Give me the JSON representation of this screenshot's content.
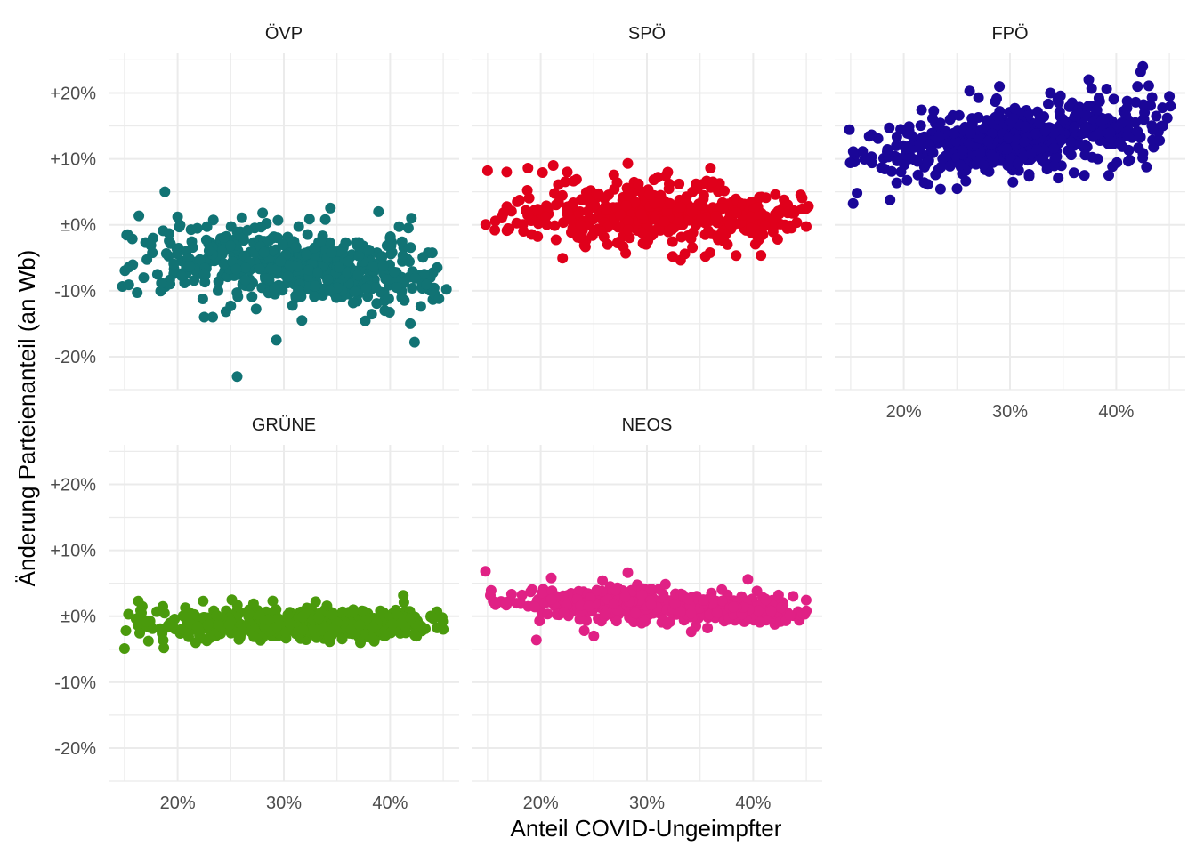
{
  "chart_data": {
    "type": "scatter",
    "xlabel": "Anteil COVID-Ungeimpfter",
    "ylabel": "Änderung Parteienanteil (an Wb)",
    "x_ticks": [
      {
        "value": 20,
        "label": "20%"
      },
      {
        "value": 30,
        "label": "30%"
      },
      {
        "value": 40,
        "label": "40%"
      }
    ],
    "y_ticks": [
      {
        "value": 20,
        "label": "+20%"
      },
      {
        "value": 10,
        "label": "+10%"
      },
      {
        "value": 0,
        "label": "±0%"
      },
      {
        "value": -10,
        "label": "-10%"
      },
      {
        "value": -20,
        "label": "-20%"
      }
    ],
    "xlim": [
      13.5,
      46.5
    ],
    "ylim": [
      -25,
      26
    ],
    "grid": true,
    "legend": "none",
    "facets": [
      {
        "name": "ÖVP",
        "color": "#117374",
        "points": [
          [
            18.8,
            5.0
          ],
          [
            25.6,
            -23.0
          ],
          [
            29.3,
            -17.5
          ],
          [
            42.3,
            -17.8
          ],
          [
            41.9,
            -15.0
          ],
          [
            38.9,
            2.0
          ],
          [
            42.0,
            1.0
          ],
          [
            15.3,
            -1.5
          ],
          [
            16.2,
            -10.3
          ],
          [
            22.5,
            -14.0
          ],
          [
            23.3,
            -14.0
          ],
          [
            31.7,
            -14.5
          ],
          [
            25.0,
            -12.3
          ],
          [
            40.6,
            -9.5
          ],
          [
            45.3,
            -9.8
          ],
          [
            44.6,
            -11.2
          ],
          [
            28.0,
            1.8
          ],
          [
            33.9,
            0.8
          ],
          [
            20.0,
            1.2
          ],
          [
            39.5,
            -13.0
          ],
          [
            40.0,
            -2.0
          ]
        ],
        "cloud": {
          "x_range": [
            14.8,
            45.0
          ],
          "y_start": -4.0,
          "y_end": -8.0,
          "spread": 2.8,
          "n": 520,
          "seed": 11
        }
      },
      {
        "name": "SPÖ",
        "color": "#e0001b",
        "points": [
          [
            15.0,
            8.2
          ],
          [
            28.2,
            9.3
          ],
          [
            18.8,
            8.6
          ],
          [
            35.5,
            -4.8
          ],
          [
            28.0,
            -4.3
          ],
          [
            45.0,
            2.5
          ],
          [
            45.2,
            2.8
          ],
          [
            44.6,
            2.4
          ],
          [
            42.3,
            -2.2
          ],
          [
            41.2,
            4.1
          ],
          [
            36.2,
            6.5
          ],
          [
            22.5,
            8.0
          ],
          [
            16.8,
            8.0
          ]
        ],
        "cloud": {
          "x_range": [
            14.8,
            45.0
          ],
          "y_start": 2.0,
          "y_end": 1.0,
          "spread": 2.3,
          "n": 450,
          "seed": 23
        }
      },
      {
        "name": "FPÖ",
        "color": "#1a0698",
        "points": [
          [
            15.6,
            4.8
          ],
          [
            42.5,
            24.0
          ],
          [
            42.3,
            23.2
          ],
          [
            45.0,
            19.5
          ],
          [
            44.8,
            16.2
          ],
          [
            45.1,
            18.0
          ],
          [
            26.2,
            20.3
          ],
          [
            29.0,
            21.0
          ],
          [
            39.1,
            20.6
          ],
          [
            42.0,
            21.0
          ],
          [
            33.8,
            20.0
          ],
          [
            37.0,
            7.5
          ],
          [
            39.3,
            7.5
          ],
          [
            41.8,
            15.5
          ]
        ],
        "cloud": {
          "x_range": [
            14.8,
            45.0
          ],
          "y_start": 10.0,
          "y_end": 15.5,
          "spread": 2.6,
          "n": 560,
          "seed": 37
        }
      },
      {
        "name": "GRÜNE",
        "color": "#4a9a0c",
        "points": [
          [
            15.0,
            -4.9
          ],
          [
            16.3,
            2.3
          ],
          [
            42.3,
            -2.8
          ],
          [
            45.0,
            -2.0
          ],
          [
            44.9,
            -0.2
          ],
          [
            22.4,
            2.3
          ],
          [
            25.1,
            2.5
          ],
          [
            33.0,
            2.2
          ],
          [
            18.7,
            -4.8
          ],
          [
            37.2,
            -4.0
          ],
          [
            21.7,
            -4.0
          ]
        ],
        "cloud": {
          "x_range": [
            14.8,
            45.0
          ],
          "y_start": -1.3,
          "y_end": -1.0,
          "spread": 1.2,
          "n": 520,
          "seed": 41
        }
      },
      {
        "name": "NEOS",
        "color": "#e02185",
        "points": [
          [
            14.8,
            6.8
          ],
          [
            19.6,
            -3.6
          ],
          [
            28.2,
            6.6
          ],
          [
            39.5,
            5.6
          ],
          [
            25.0,
            -3.0
          ],
          [
            24.1,
            -2.2
          ],
          [
            45.0,
            0.8
          ],
          [
            44.6,
            0.5
          ],
          [
            35.7,
            -1.8
          ],
          [
            21.0,
            5.8
          ]
        ],
        "cloud": {
          "x_range": [
            14.8,
            45.0
          ],
          "y_start": 2.6,
          "y_end": 0.8,
          "spread": 1.1,
          "n": 520,
          "seed": 53
        }
      }
    ]
  }
}
